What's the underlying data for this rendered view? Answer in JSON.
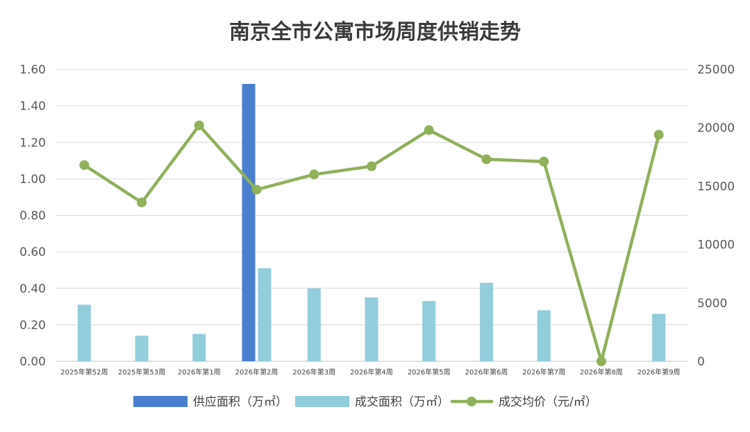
{
  "chart_data": {
    "type": "bar-line-combo",
    "title": "南京全市公寓市场周度供销走势",
    "categories": [
      "2025年第52周",
      "2025年第53周",
      "2026年第1周",
      "2026年第2周",
      "2026年第3周",
      "2026年第4周",
      "2026年第5周",
      "2026年第6周",
      "2026年第7周",
      "2026年第8周",
      "2026年第9周"
    ],
    "y_left": {
      "ticks": [
        "0.00",
        "0.20",
        "0.40",
        "0.60",
        "0.80",
        "1.00",
        "1.20",
        "1.40",
        "1.60"
      ],
      "range": [
        0,
        1.6
      ]
    },
    "y_right": {
      "ticks": [
        "0",
        "5000",
        "10000",
        "15000",
        "20000",
        "25000"
      ],
      "range": [
        0,
        25000
      ]
    },
    "series": [
      {
        "name": "供应面积（万㎡）",
        "kind": "bar",
        "axis": "left",
        "color": "#4a7fd0",
        "values": [
          0,
          0,
          0,
          1.52,
          0,
          0,
          0,
          0,
          0,
          0,
          0
        ]
      },
      {
        "name": "成交面积（万㎡）",
        "kind": "bar",
        "axis": "left",
        "color": "#92cddc",
        "values": [
          0.31,
          0.14,
          0.15,
          0.51,
          0.4,
          0.35,
          0.33,
          0.43,
          0.28,
          0,
          0.26
        ]
      },
      {
        "name": "成交均价（元/㎡）",
        "kind": "line",
        "axis": "right",
        "color": "#8fb15a",
        "values": [
          16800,
          13600,
          20200,
          14700,
          16000,
          16700,
          19800,
          17300,
          17100,
          0,
          19400
        ]
      }
    ],
    "legend_position": "bottom",
    "grid": "horizontal"
  }
}
